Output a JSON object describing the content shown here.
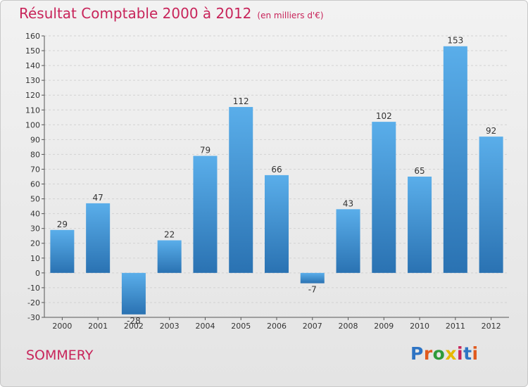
{
  "header": {
    "title": "Résultat Comptable 2000 à 2012",
    "subtitle": "(en milliers d'€)"
  },
  "footer": {
    "place": "SOMMERY",
    "logo": "Proxiti",
    "logo_colors": [
      "#2e74c4",
      "#e05a1e",
      "#2e9a3a",
      "#e6b800",
      "#c8245a",
      "#2e74c4",
      "#e05a1e"
    ]
  },
  "colors": {
    "bar_light": "#5aaeea",
    "bar_dark": "#2a72b2",
    "accent": "#c8245a"
  },
  "chart_data": {
    "type": "bar",
    "categories": [
      "2000",
      "2001",
      "2002",
      "2003",
      "2004",
      "2005",
      "2006",
      "2007",
      "2008",
      "2009",
      "2010",
      "2011",
      "2012"
    ],
    "values": [
      29,
      47,
      -28,
      22,
      79,
      112,
      66,
      -7,
      43,
      102,
      65,
      153,
      92
    ],
    "ylim": [
      -30,
      160
    ],
    "ytick_step": 10,
    "grid": true
  }
}
